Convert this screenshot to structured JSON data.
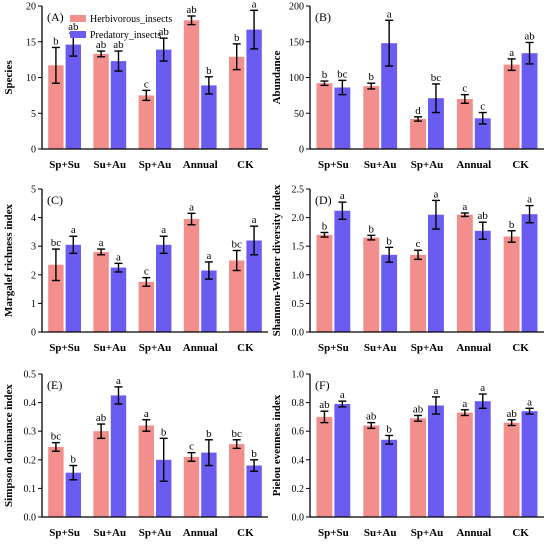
{
  "colors": {
    "herbivorous": "#f28e8c",
    "predatory": "#6a5cf0"
  },
  "legend": {
    "herbivorous": "Herbivorous_insects",
    "predatory": "Predatory_insects"
  },
  "chart_data": [
    {
      "type": "bar",
      "panel": "(A)",
      "ylabel": "Species",
      "ylim": [
        0,
        20
      ],
      "yticks": [
        0,
        5,
        10,
        15,
        20
      ],
      "categories": [
        "Sp+Su",
        "Su+Au",
        "Sp+Au",
        "Annual",
        "CK"
      ],
      "series": [
        {
          "name": "Herbivorous_insects",
          "values": [
            11.7,
            13.3,
            7.5,
            18.0,
            12.9
          ],
          "errors": [
            2.5,
            0.4,
            0.7,
            0.6,
            1.8
          ],
          "labels": [
            "b",
            "ab",
            "c",
            "ab",
            "b"
          ]
        },
        {
          "name": "Predatory_insects",
          "values": [
            14.6,
            12.3,
            13.9,
            8.9,
            16.7
          ],
          "errors": [
            1.6,
            1.4,
            1.6,
            1.2,
            2.7
          ],
          "labels": [
            "ab",
            "ab",
            "ab",
            "b",
            "a"
          ]
        }
      ]
    },
    {
      "type": "bar",
      "panel": "(B)",
      "ylabel": "Abundance",
      "ylim": [
        0,
        200
      ],
      "yticks": [
        0,
        50,
        100,
        150,
        200
      ],
      "categories": [
        "Sp+Su",
        "Su+Au",
        "Sp+Au",
        "Annual",
        "CK"
      ],
      "series": [
        {
          "name": "Herbivorous_insects",
          "values": [
            92,
            88,
            42,
            70,
            118
          ],
          "errors": [
            3,
            4,
            3,
            6,
            8
          ],
          "labels": [
            "b",
            "b",
            "d",
            "c",
            "a"
          ]
        },
        {
          "name": "Predatory_insects",
          "values": [
            86,
            148,
            71,
            43,
            134
          ],
          "errors": [
            10,
            32,
            20,
            8,
            15
          ],
          "labels": [
            "bc",
            "a",
            "bc",
            "c",
            "ab"
          ]
        }
      ]
    },
    {
      "type": "bar",
      "panel": "(C)",
      "ylabel": "Margalef richness index",
      "ylim": [
        0,
        5
      ],
      "yticks": [
        0,
        1,
        2,
        3,
        4,
        5
      ],
      "categories": [
        "Sp+Su",
        "Su+Au",
        "Sp+Au",
        "Annual",
        "CK"
      ],
      "series": [
        {
          "name": "Herbivorous_insects",
          "values": [
            2.35,
            2.8,
            1.75,
            3.95,
            2.5
          ],
          "errors": [
            0.55,
            0.1,
            0.15,
            0.2,
            0.35
          ],
          "labels": [
            "bc",
            "a",
            "c",
            "a",
            "bc"
          ]
        },
        {
          "name": "Predatory_insects",
          "values": [
            3.05,
            2.25,
            3.05,
            2.15,
            3.2
          ],
          "errors": [
            0.3,
            0.15,
            0.3,
            0.3,
            0.5
          ],
          "labels": [
            "a",
            "a",
            "a",
            "a",
            "a"
          ]
        }
      ]
    },
    {
      "type": "bar",
      "panel": "(D)",
      "ylabel": "Shannon-Wiener diversity index",
      "ylim": [
        0,
        2.5
      ],
      "yticks": [
        0.0,
        0.5,
        1.0,
        1.5,
        2.0,
        2.5
      ],
      "categories": [
        "Sp+Su",
        "Su+Au",
        "Sp+Au",
        "Annual",
        "CK"
      ],
      "series": [
        {
          "name": "Herbivorous_insects",
          "values": [
            1.7,
            1.65,
            1.35,
            2.05,
            1.67
          ],
          "errors": [
            0.04,
            0.04,
            0.08,
            0.03,
            0.1
          ],
          "labels": [
            "b",
            "b",
            "c",
            "a",
            "b"
          ]
        },
        {
          "name": "Predatory_insects",
          "values": [
            2.12,
            1.35,
            2.05,
            1.77,
            2.06
          ],
          "errors": [
            0.15,
            0.13,
            0.25,
            0.15,
            0.15
          ],
          "labels": [
            "a",
            "b",
            "a",
            "ab",
            "a"
          ]
        }
      ]
    },
    {
      "type": "bar",
      "panel": "(E)",
      "ylabel": "Simpson dominance index",
      "ylim": [
        0,
        0.5
      ],
      "yticks": [
        0.0,
        0.1,
        0.2,
        0.3,
        0.4,
        0.5
      ],
      "categories": [
        "Sp+Su",
        "Su+Au",
        "Sp+Au",
        "Annual",
        "CK"
      ],
      "series": [
        {
          "name": "Herbivorous_insects",
          "values": [
            0.245,
            0.3,
            0.32,
            0.21,
            0.255
          ],
          "errors": [
            0.015,
            0.025,
            0.02,
            0.015,
            0.015
          ],
          "labels": [
            "bc",
            "ab",
            "a",
            "c",
            "bc"
          ]
        },
        {
          "name": "Predatory_insects",
          "values": [
            0.155,
            0.425,
            0.2,
            0.225,
            0.18
          ],
          "errors": [
            0.025,
            0.03,
            0.075,
            0.045,
            0.02
          ],
          "labels": [
            "b",
            "a",
            "b",
            "b",
            "b"
          ]
        }
      ]
    },
    {
      "type": "bar",
      "panel": "(F)",
      "ylabel": "Pielou evenness index",
      "ylim": [
        0,
        1.0
      ],
      "yticks": [
        0.0,
        0.2,
        0.4,
        0.6,
        0.8,
        1.0
      ],
      "categories": [
        "Sp+Su",
        "Su+Au",
        "Sp+Au",
        "Annual",
        "CK"
      ],
      "series": [
        {
          "name": "Herbivorous_insects",
          "values": [
            0.7,
            0.64,
            0.69,
            0.73,
            0.66
          ],
          "errors": [
            0.04,
            0.02,
            0.02,
            0.02,
            0.02
          ],
          "labels": [
            "ab",
            "ab",
            "ab",
            "a",
            "ab"
          ]
        },
        {
          "name": "Predatory_insects",
          "values": [
            0.79,
            0.54,
            0.78,
            0.81,
            0.74
          ],
          "errors": [
            0.02,
            0.03,
            0.06,
            0.05,
            0.02
          ],
          "labels": [
            "a",
            "b",
            "a",
            "a",
            "a"
          ]
        }
      ]
    }
  ]
}
